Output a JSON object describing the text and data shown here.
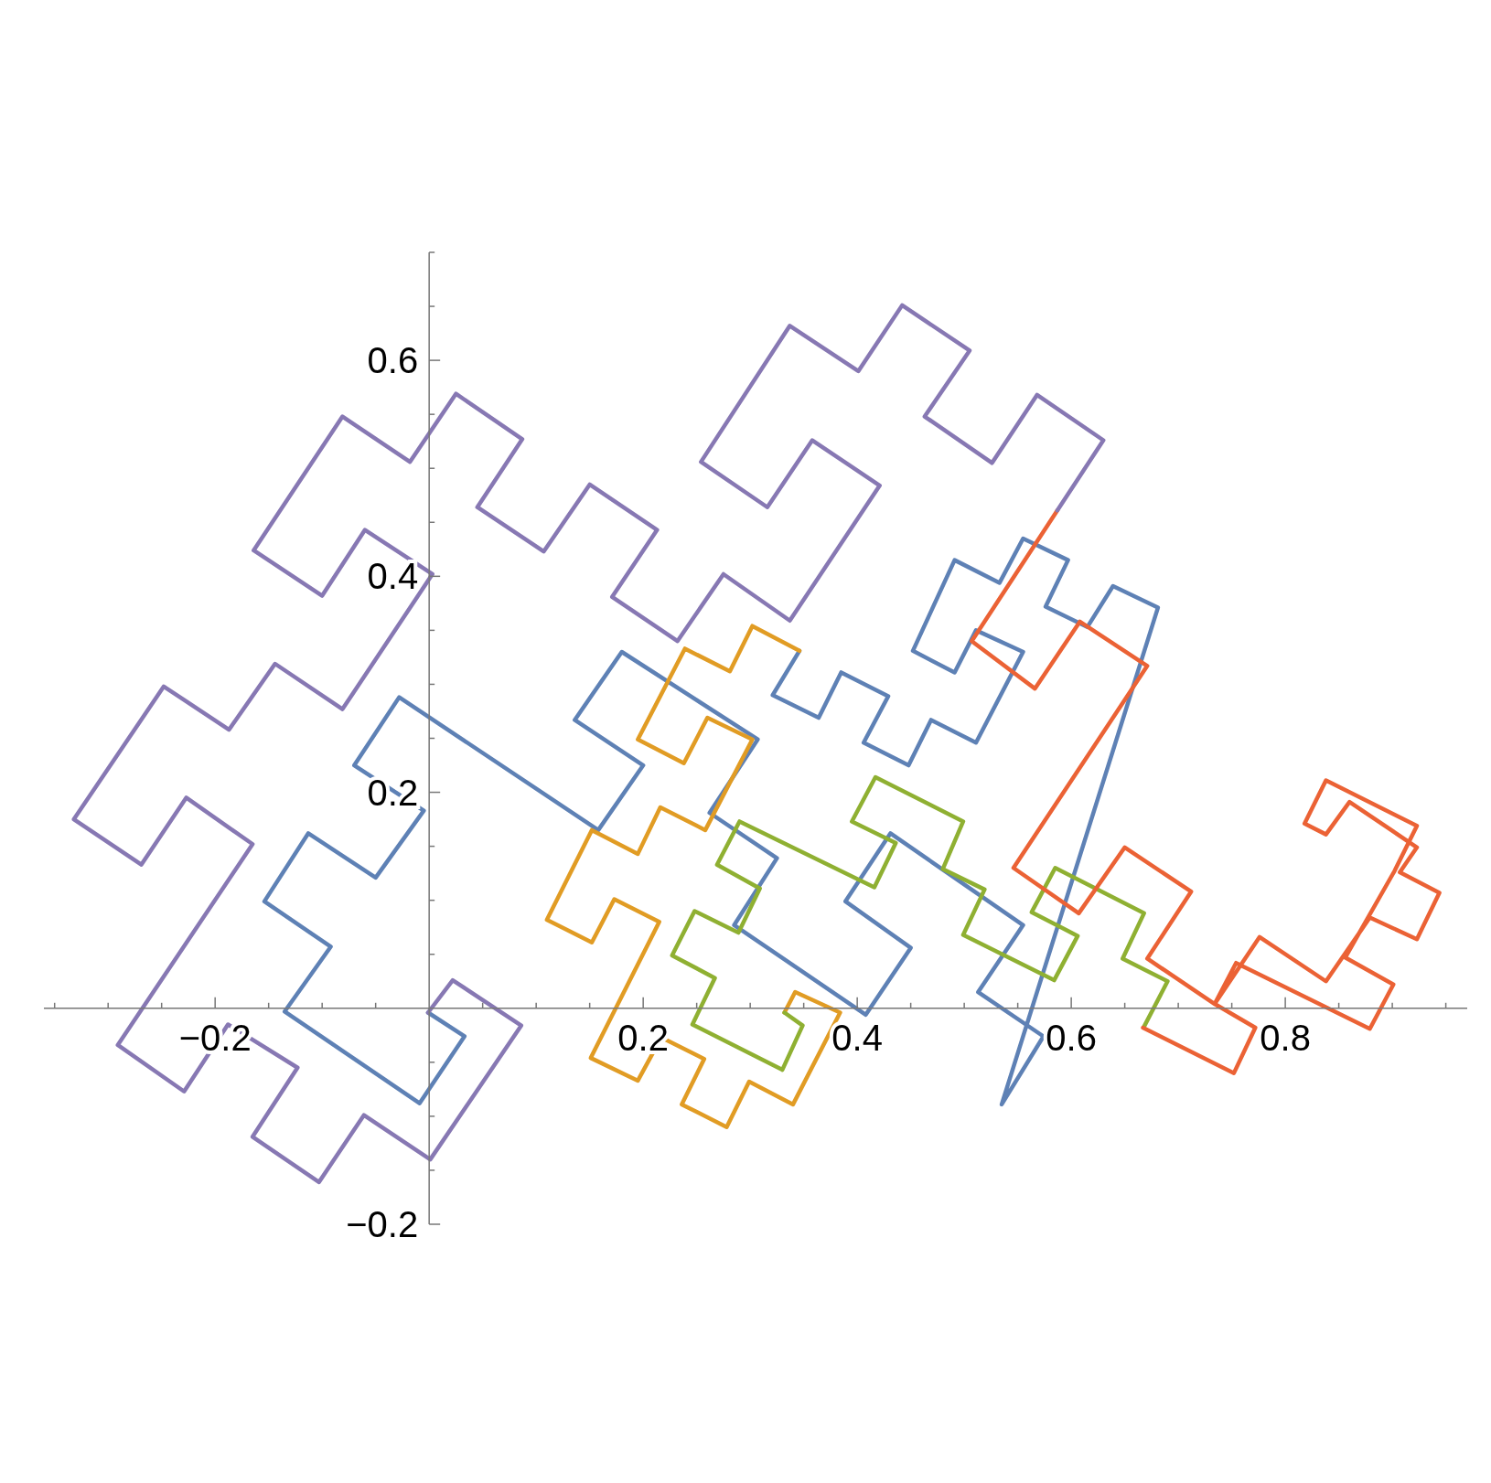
{
  "chart_data": {
    "type": "line",
    "xlim": [
      -0.36,
      0.97
    ],
    "ylim": [
      -0.2,
      0.7
    ],
    "xticks": [
      {
        "value": -0.35,
        "label": null
      },
      {
        "value": -0.3,
        "label": null
      },
      {
        "value": -0.25,
        "label": null
      },
      {
        "value": -0.2,
        "label": "−0.2"
      },
      {
        "value": -0.15,
        "label": null
      },
      {
        "value": -0.1,
        "label": null
      },
      {
        "value": -0.05,
        "label": null
      },
      {
        "value": 0.05,
        "label": null
      },
      {
        "value": 0.1,
        "label": null
      },
      {
        "value": 0.15,
        "label": null
      },
      0.2,
      {
        "value": 0.25,
        "label": null
      },
      {
        "value": 0.3,
        "label": null
      },
      {
        "value": 0.35,
        "label": null
      },
      0.4,
      {
        "value": 0.45,
        "label": null
      },
      {
        "value": 0.5,
        "label": null
      },
      {
        "value": 0.55,
        "label": null
      },
      0.6,
      {
        "value": 0.65,
        "label": null
      },
      {
        "value": 0.7,
        "label": null
      },
      {
        "value": 0.75,
        "label": null
      },
      0.8,
      {
        "value": 0.85,
        "label": null
      },
      {
        "value": 0.9,
        "label": null
      },
      {
        "value": 0.95,
        "label": null
      }
    ],
    "yticks": [
      {
        "value": -0.2,
        "label": "−0.2"
      },
      {
        "value": -0.15,
        "label": null
      },
      {
        "value": -0.1,
        "label": null
      },
      {
        "value": -0.05,
        "label": null
      },
      {
        "value": 0.05,
        "label": null
      },
      {
        "value": 0.1,
        "label": null
      },
      {
        "value": 0.15,
        "label": null
      },
      0.2,
      {
        "value": 0.25,
        "label": null
      },
      {
        "value": 0.3,
        "label": null
      },
      {
        "value": 0.35,
        "label": null
      },
      0.4,
      {
        "value": 0.45,
        "label": null
      },
      {
        "value": 0.5,
        "label": null
      },
      {
        "value": 0.55,
        "label": null
      },
      0.6,
      {
        "value": 0.65,
        "label": null
      },
      {
        "value": 0.7,
        "label": null
      }
    ],
    "series": [
      {
        "color": "#5e81b5",
        "x": [
          0.346,
          0.321,
          0.364,
          0.385,
          0.429,
          0.406,
          0.448,
          0.469,
          0.511,
          0.555,
          0.511,
          0.491,
          0.452,
          0.491,
          0.533,
          0.555,
          0.597,
          0.576,
          0.615,
          0.639,
          0.681,
          0.535,
          0.574,
          0.513,
          0.555,
          0.431,
          0.389,
          0.45,
          0.408,
          0.285,
          0.325,
          0.262,
          0.307,
          0.18,
          0.136,
          0.2,
          0.158,
          -0.028,
          -0.07,
          -0.005,
          -0.05,
          -0.113,
          -0.154,
          -0.092,
          -0.135,
          -0.009,
          0.033,
          -0.001
        ],
        "values": [
          0.331,
          0.29,
          0.269,
          0.311,
          0.289,
          0.246,
          0.225,
          0.267,
          0.246,
          0.33,
          0.35,
          0.311,
          0.331,
          0.415,
          0.394,
          0.435,
          0.415,
          0.372,
          0.353,
          0.391,
          0.371,
          -0.089,
          -0.026,
          0.015,
          0.077,
          0.162,
          0.099,
          0.056,
          -0.006,
          0.077,
          0.139,
          0.181,
          0.249,
          0.33,
          0.267,
          0.225,
          0.165,
          0.288,
          0.225,
          0.183,
          0.121,
          0.162,
          0.099,
          0.057,
          -0.003,
          -0.088,
          -0.026,
          -0.004
        ]
      },
      {
        "color": "#e19c24",
        "x": [
          0.332,
          0.342,
          0.384,
          0.34,
          0.299,
          0.278,
          0.236,
          0.257,
          0.217,
          0.195,
          0.151,
          0.215,
          0.173,
          0.152,
          0.11,
          0.152,
          0.195,
          0.216,
          0.258,
          0.302,
          0.26,
          0.238,
          0.195,
          0.239,
          0.281,
          0.302,
          0.346
        ],
        "values": [
          -0.004,
          0.015,
          -0.004,
          -0.089,
          -0.068,
          -0.11,
          -0.089,
          -0.047,
          -0.027,
          -0.067,
          -0.046,
          0.08,
          0.101,
          0.061,
          0.082,
          0.165,
          0.143,
          0.186,
          0.165,
          0.249,
          0.269,
          0.227,
          0.249,
          0.333,
          0.312,
          0.354,
          0.331
        ]
      },
      {
        "color": "#8fb032",
        "x": [
          0.332,
          0.349,
          0.33,
          0.246,
          0.267,
          0.227,
          0.248,
          0.289,
          0.309,
          0.269,
          0.29,
          0.416,
          0.436,
          0.395,
          0.417,
          0.499,
          0.48,
          0.519,
          0.499,
          0.584,
          0.606,
          0.563,
          0.585,
          0.668,
          0.648,
          0.69,
          0.668
        ],
        "values": [
          -0.004,
          -0.016,
          -0.057,
          -0.015,
          0.028,
          0.049,
          0.09,
          0.07,
          0.111,
          0.133,
          0.173,
          0.112,
          0.153,
          0.173,
          0.214,
          0.173,
          0.129,
          0.11,
          0.068,
          0.026,
          0.067,
          0.089,
          0.13,
          0.088,
          0.046,
          0.025,
          -0.017
        ]
      },
      {
        "color": "#eb6235",
        "x": [
          0.587,
          0.507,
          0.566,
          0.608,
          0.671,
          0.546,
          0.607,
          0.65,
          0.712,
          0.671,
          0.734,
          0.776,
          0.838,
          0.879,
          0.923,
          0.944,
          0.907,
          0.923,
          0.86,
          0.838,
          0.818,
          0.838,
          0.923,
          0.902,
          0.856,
          0.901,
          0.879,
          0.754,
          0.734,
          0.772,
          0.752,
          0.667
        ],
        "values": [
          0.461,
          0.34,
          0.296,
          0.358,
          0.317,
          0.13,
          0.088,
          0.149,
          0.108,
          0.046,
          0.004,
          0.066,
          0.025,
          0.084,
          0.064,
          0.107,
          0.126,
          0.149,
          0.191,
          0.161,
          0.171,
          0.211,
          0.169,
          0.127,
          0.047,
          0.022,
          -0.019,
          0.042,
          0.004,
          -0.018,
          -0.06,
          -0.018
        ]
      },
      {
        "color": "#8778b3",
        "x": [
          -0.001,
          0.022,
          0.086,
          0.001,
          -0.061,
          -0.103,
          -0.165,
          -0.123,
          -0.188,
          -0.229,
          -0.291,
          -0.165,
          -0.227,
          -0.269,
          -0.332,
          -0.248,
          -0.187,
          -0.144,
          -0.081,
          0.003,
          -0.06,
          -0.1,
          -0.164,
          -0.081,
          -0.018,
          0.025,
          0.087,
          0.045,
          0.107,
          0.15,
          0.213,
          0.171,
          0.232,
          0.275,
          0.337,
          0.421,
          0.358,
          0.316,
          0.254,
          0.337,
          0.401,
          0.442,
          0.505,
          0.463,
          0.526,
          0.568,
          0.63,
          0.587
        ],
        "values": [
          -0.004,
          0.026,
          -0.016,
          -0.14,
          -0.099,
          -0.161,
          -0.119,
          -0.055,
          -0.015,
          -0.077,
          -0.034,
          0.152,
          0.195,
          0.133,
          0.175,
          0.298,
          0.258,
          0.319,
          0.277,
          0.402,
          0.443,
          0.382,
          0.424,
          0.548,
          0.506,
          0.569,
          0.527,
          0.464,
          0.423,
          0.485,
          0.443,
          0.381,
          0.34,
          0.402,
          0.359,
          0.484,
          0.526,
          0.464,
          0.506,
          0.632,
          0.59,
          0.651,
          0.609,
          0.548,
          0.505,
          0.568,
          0.526,
          0.461
        ]
      }
    ]
  }
}
